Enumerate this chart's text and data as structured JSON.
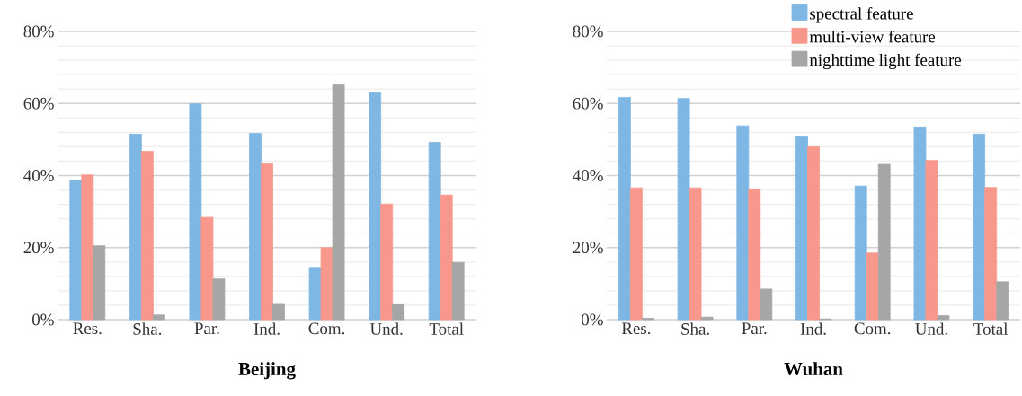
{
  "chart_data": [
    {
      "type": "bar",
      "title": "Beijing",
      "categories": [
        "Res.",
        "Sha.",
        "Par.",
        "Ind.",
        "Com.",
        "Und.",
        "Total"
      ],
      "series": [
        {
          "color": "#7eb6e4",
          "values": [
            38.7,
            51.5,
            59.9,
            51.7,
            14.5,
            63.0,
            49.2
          ]
        },
        {
          "color": "#f8988c",
          "values": [
            40.2,
            46.7,
            28.4,
            43.3,
            20.0,
            32.1,
            34.6
          ]
        },
        {
          "color": "#a6a6a6",
          "values": [
            20.5,
            1.3,
            11.3,
            4.5,
            65.2,
            4.4,
            15.9
          ]
        }
      ],
      "ylim": [
        0,
        80
      ],
      "yticks": [
        {
          "value": 0,
          "label": "0%"
        },
        {
          "value": 20,
          "label": "20%"
        },
        {
          "value": 40,
          "label": "40%"
        },
        {
          "value": 60,
          "label": "60%"
        },
        {
          "value": 80,
          "label": "80%"
        }
      ],
      "grid": "y",
      "legend": false
    },
    {
      "type": "bar",
      "title": "Wuhan",
      "categories": [
        "Res.",
        "Sha.",
        "Par.",
        "Ind.",
        "Com.",
        "Und.",
        "Total"
      ],
      "series": [
        {
          "name": "spectral feature",
          "color": "#7eb6e4",
          "values": [
            61.7,
            61.4,
            53.8,
            50.8,
            37.1,
            53.5,
            51.5
          ]
        },
        {
          "name": "multi-view feature",
          "color": "#f8988c",
          "values": [
            36.6,
            36.6,
            36.3,
            48.0,
            18.5,
            44.2,
            36.7
          ]
        },
        {
          "name": "nighttime light feature",
          "color": "#a6a6a6",
          "values": [
            0.4,
            0.7,
            8.5,
            0.2,
            43.1,
            1.1,
            10.5
          ]
        }
      ],
      "ylim": [
        0,
        80
      ],
      "yticks": [
        {
          "value": 0,
          "label": "0%"
        },
        {
          "value": 20,
          "label": "20%"
        },
        {
          "value": 40,
          "label": "40%"
        },
        {
          "value": 60,
          "label": "60%"
        },
        {
          "value": 80,
          "label": "80%"
        }
      ],
      "grid": "y",
      "legend": "top right"
    }
  ]
}
